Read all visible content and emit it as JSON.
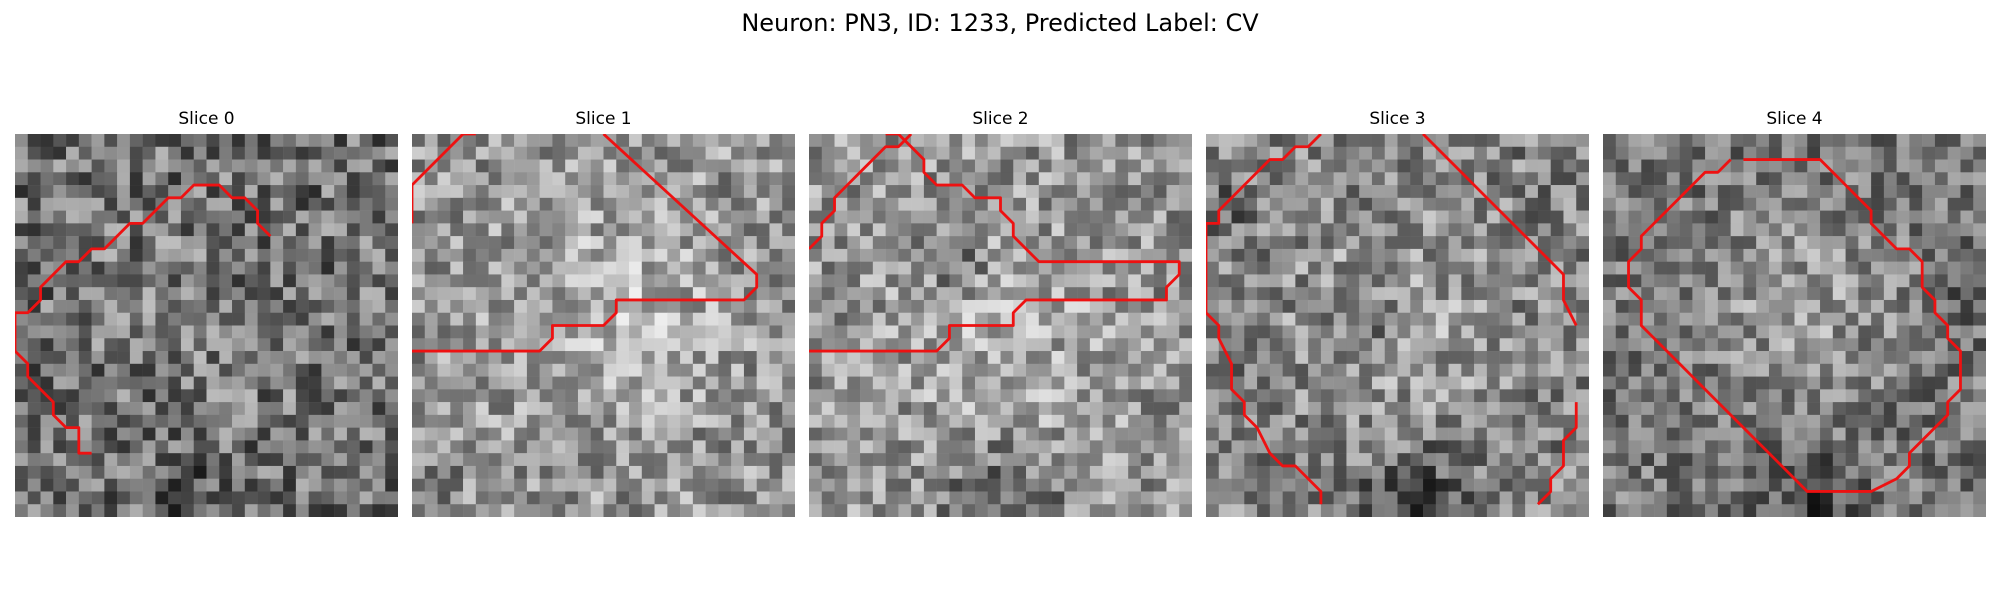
{
  "figure": {
    "title": "Neuron: PN3, ID: 1233, Predicted Label: CV"
  },
  "panels": [
    {
      "title": "Slice 0"
    },
    {
      "title": "Slice 1"
    },
    {
      "title": "Slice 2"
    },
    {
      "title": "Slice 3"
    },
    {
      "title": "Slice 4"
    }
  ],
  "colors": {
    "contour": "#ee1111"
  }
}
